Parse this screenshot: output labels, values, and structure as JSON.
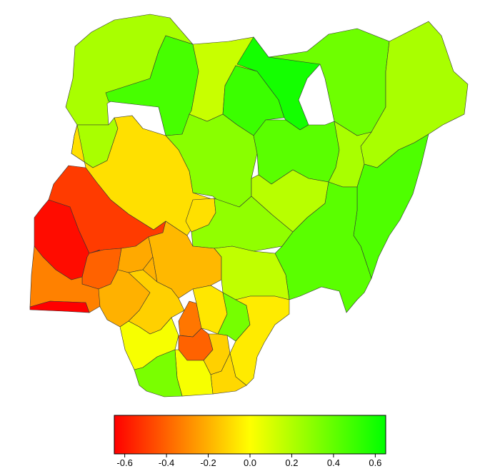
{
  "map": {
    "country": "Nigeria",
    "regions": [
      {
        "id": "sokoto",
        "value": 0.22
      },
      {
        "id": "zamfara",
        "value": 0.47
      },
      {
        "id": "kebbi",
        "value": 0.22
      },
      {
        "id": "katsina",
        "value": 0.14
      },
      {
        "id": "kano",
        "value": 0.5
      },
      {
        "id": "jigawa",
        "value": 0.6
      },
      {
        "id": "yobe",
        "value": 0.37
      },
      {
        "id": "borno",
        "value": 0.22
      },
      {
        "id": "kaduna",
        "value": 0.3
      },
      {
        "id": "bauchi",
        "value": 0.42
      },
      {
        "id": "gombe",
        "value": 0.22
      },
      {
        "id": "adamawa",
        "value": 0.45
      },
      {
        "id": "niger",
        "value": -0.08
      },
      {
        "id": "fct",
        "value": -0.08
      },
      {
        "id": "nasarawa",
        "value": 0.28
      },
      {
        "id": "plateau",
        "value": 0.18
      },
      {
        "id": "taraba",
        "value": 0.42
      },
      {
        "id": "kwara",
        "value": -0.5
      },
      {
        "id": "oyo",
        "value": -0.62
      },
      {
        "id": "osun",
        "value": -0.4
      },
      {
        "id": "ogun",
        "value": -0.32
      },
      {
        "id": "lagos",
        "value": -0.66
      },
      {
        "id": "ekiti",
        "value": -0.22
      },
      {
        "id": "ondo",
        "value": -0.2
      },
      {
        "id": "kogi",
        "value": -0.18
      },
      {
        "id": "benue",
        "value": 0.16
      },
      {
        "id": "edo",
        "value": -0.12
      },
      {
        "id": "delta",
        "value": 0.02
      },
      {
        "id": "anambra",
        "value": -0.35
      },
      {
        "id": "enugu",
        "value": -0.06
      },
      {
        "id": "ebonyi",
        "value": 0.35
      },
      {
        "id": "cross_river",
        "value": -0.05
      },
      {
        "id": "imo",
        "value": -0.4
      },
      {
        "id": "abia",
        "value": -0.12
      },
      {
        "id": "akwa_ibom",
        "value": -0.1
      },
      {
        "id": "rivers",
        "value": 0.02
      },
      {
        "id": "bayelsa",
        "value": 0.34
      }
    ]
  },
  "legend": {
    "min": -0.65,
    "max": 0.65,
    "ticks": [
      "-0.6",
      "-0.4",
      "-0.2",
      "0.0",
      "0.2",
      "0.4",
      "0.6"
    ],
    "tick_values": [
      -0.6,
      -0.4,
      -0.2,
      0.0,
      0.2,
      0.4,
      0.6
    ],
    "colors": {
      "low": "#ff0000",
      "mid": "#ffff00",
      "high": "#00ff00"
    }
  }
}
